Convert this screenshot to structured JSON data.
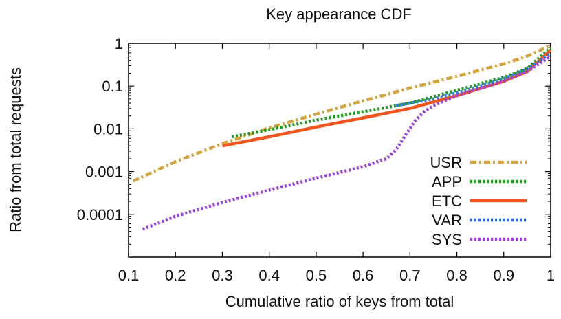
{
  "chart_data": {
    "type": "line",
    "title": "Key appearance CDF",
    "xlabel": "Cumulative ratio of keys from total",
    "ylabel": "Ratio from total requests",
    "xlim": [
      0.1,
      1.0
    ],
    "ylim": [
      1e-05,
      1
    ],
    "yscale": "log",
    "xticks": [
      0.1,
      0.2,
      0.3,
      0.4,
      0.5,
      0.6,
      0.7,
      0.8,
      0.9,
      1.0
    ],
    "xtick_labels": [
      "0.1",
      "0.2",
      "0.3",
      "0.4",
      "0.5",
      "0.6",
      "0.7",
      "0.8",
      "0.9",
      "1"
    ],
    "yticks": [
      0.0001,
      0.001,
      0.01,
      0.1,
      1
    ],
    "ytick_labels": [
      "0.0001",
      "0.001",
      "0.01",
      "0.1",
      "1"
    ],
    "legend_position": "bottom-right",
    "series": [
      {
        "name": "USR",
        "color": "#d4a53c",
        "style": "dash-dot",
        "x": [
          0.11,
          0.2,
          0.3,
          0.4,
          0.5,
          0.6,
          0.7,
          0.8,
          0.9,
          0.95,
          1.0
        ],
        "y": [
          0.0006,
          0.0017,
          0.0045,
          0.0105,
          0.022,
          0.045,
          0.09,
          0.17,
          0.33,
          0.5,
          0.9
        ]
      },
      {
        "name": "APP",
        "color": "#1e9c1e",
        "style": "dotted",
        "x": [
          0.32,
          0.4,
          0.5,
          0.6,
          0.7,
          0.8,
          0.9,
          0.95,
          1.0
        ],
        "y": [
          0.0065,
          0.0095,
          0.016,
          0.025,
          0.04,
          0.08,
          0.16,
          0.26,
          0.8
        ]
      },
      {
        "name": "ETC",
        "color": "#f0561e",
        "style": "solid",
        "x": [
          0.3,
          0.4,
          0.5,
          0.6,
          0.7,
          0.8,
          0.9,
          0.95,
          1.0
        ],
        "y": [
          0.004,
          0.0065,
          0.011,
          0.018,
          0.03,
          0.06,
          0.13,
          0.22,
          0.7
        ]
      },
      {
        "name": "VAR",
        "color": "#3a78e0",
        "style": "dotted",
        "x": [
          0.67,
          0.7,
          0.75,
          0.8,
          0.85,
          0.9,
          0.95,
          1.0
        ],
        "y": [
          0.035,
          0.04,
          0.05,
          0.07,
          0.1,
          0.15,
          0.25,
          0.6
        ]
      },
      {
        "name": "SYS",
        "color": "#9b3fe0",
        "style": "dotted",
        "x": [
          0.13,
          0.2,
          0.3,
          0.4,
          0.5,
          0.6,
          0.65,
          0.67,
          0.69,
          0.71,
          0.73,
          0.75,
          0.8,
          0.9,
          0.95,
          1.0
        ],
        "y": [
          4.5e-05,
          9e-05,
          0.00019,
          0.00037,
          0.0007,
          0.0013,
          0.002,
          0.0032,
          0.007,
          0.015,
          0.025,
          0.035,
          0.06,
          0.13,
          0.22,
          0.5
        ]
      }
    ]
  }
}
